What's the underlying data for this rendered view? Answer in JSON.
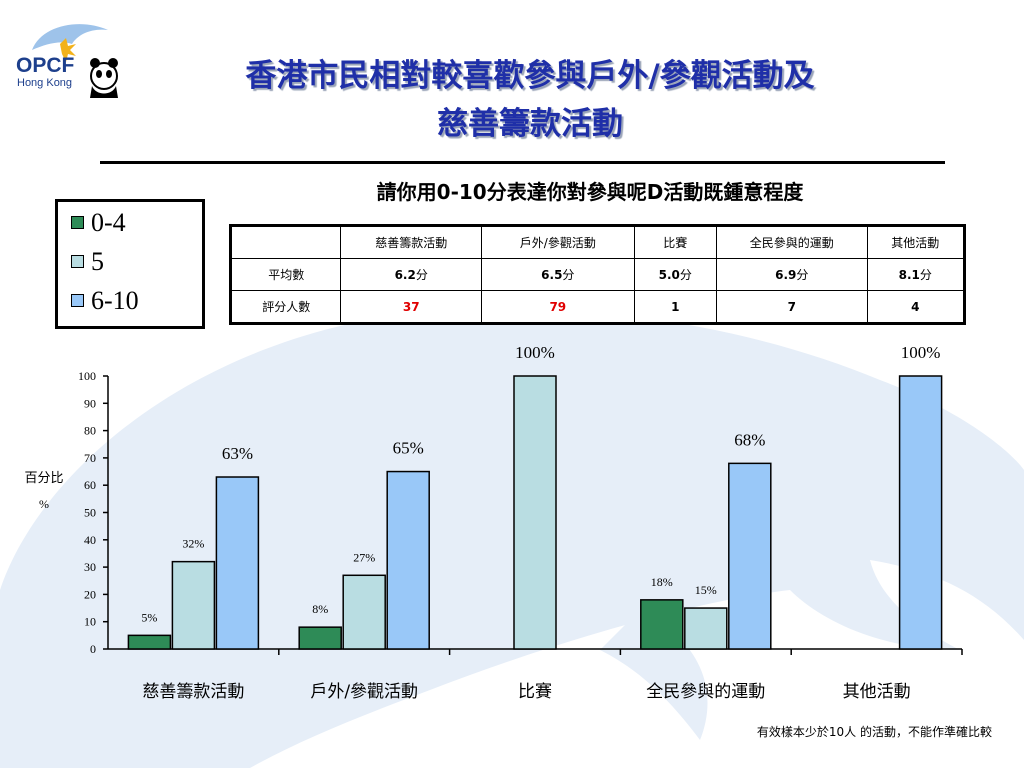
{
  "logo": {
    "text": "OPCF",
    "sub": "Hong Kong"
  },
  "title_lines": [
    "香港市民相對較喜歡參與戶外/參觀活動及",
    "慈善籌款活動"
  ],
  "question": "請你用0-10分表達你對參與呢D活動既鍾意程度",
  "legend": [
    {
      "label": "0-4",
      "color": "#2e8b57"
    },
    {
      "label": "5",
      "color": "#b9dde2"
    },
    {
      "label": "6-10",
      "color": "#99c8f8"
    }
  ],
  "summary_table": {
    "headers": [
      "",
      "慈善籌款活動",
      "戶外/參觀活動",
      "比賽",
      "全民參與的運動",
      "其他活動"
    ],
    "rows": [
      {
        "label": "平均數",
        "cells": [
          {
            "num": "6.2",
            "unit": "分"
          },
          {
            "num": "6.5",
            "unit": "分"
          },
          {
            "num": "5.0",
            "unit": "分"
          },
          {
            "num": "6.9",
            "unit": "分"
          },
          {
            "num": "8.1",
            "unit": "分"
          }
        ]
      },
      {
        "label": "評分人數",
        "cells": [
          {
            "num": "37",
            "unit": "",
            "red": true
          },
          {
            "num": "79",
            "unit": "",
            "red": true
          },
          {
            "num": "1",
            "unit": ""
          },
          {
            "num": "7",
            "unit": ""
          },
          {
            "num": "4",
            "unit": ""
          }
        ]
      }
    ]
  },
  "chart_data": {
    "type": "bar",
    "categories": [
      "慈善籌款活動",
      "戶外/參觀活動",
      "比賽",
      "全民參與的運動",
      "其他活動"
    ],
    "series": [
      {
        "name": "0-4",
        "color": "#2e8b57",
        "values": [
          5,
          8,
          null,
          18,
          null
        ],
        "labels": [
          "5%",
          "8%",
          "",
          "18%",
          ""
        ]
      },
      {
        "name": "5",
        "color": "#b9dde2",
        "values": [
          32,
          27,
          100,
          15,
          null
        ],
        "labels": [
          "32%",
          "27%",
          "100%",
          "15%",
          ""
        ]
      },
      {
        "name": "6-10",
        "color": "#99c8f8",
        "values": [
          63,
          65,
          null,
          68,
          100
        ],
        "labels": [
          "63%",
          "65%",
          "",
          "68%",
          "100%"
        ]
      }
    ],
    "ylabel": "百分比",
    "ylabel_unit": "%",
    "ylim": [
      0,
      100
    ],
    "yticks": [
      0,
      10,
      20,
      30,
      40,
      50,
      60,
      70,
      80,
      90,
      100
    ],
    "grid": false,
    "legend": "top-left"
  },
  "footnote": "有效樣本少於10人 的活動，不能作準確比較"
}
